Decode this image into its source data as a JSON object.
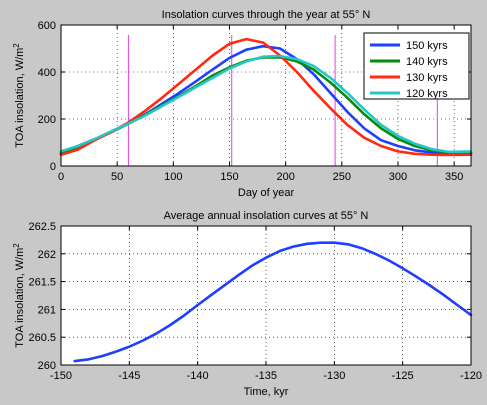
{
  "chart_data": [
    {
      "type": "line",
      "title": "Insolation curves through the year at 55° N",
      "xlabel": "Day of year",
      "ylabel": "TOA insolation, W/m2",
      "xlim": [
        0,
        365
      ],
      "ylim": [
        0,
        600
      ],
      "xticks": [
        0,
        50,
        100,
        150,
        200,
        250,
        300,
        350
      ],
      "yticks": [
        0,
        200,
        400,
        600
      ],
      "grid": true,
      "legend_position": "top-right",
      "vertical_markers": [
        60,
        152,
        244,
        335
      ],
      "vertical_marker_color": "#e040e0",
      "x": [
        0,
        15,
        30,
        45,
        60,
        75,
        90,
        105,
        120,
        135,
        150,
        165,
        180,
        195,
        210,
        225,
        240,
        255,
        270,
        285,
        300,
        315,
        330,
        345,
        365
      ],
      "series": [
        {
          "name": "150 kyrs",
          "color": "#1f3fff",
          "values": [
            54,
            80,
            112,
            145,
            180,
            220,
            265,
            310,
            360,
            410,
            460,
            495,
            510,
            500,
            455,
            390,
            310,
            230,
            160,
            110,
            85,
            67,
            58,
            52,
            54
          ]
        },
        {
          "name": "140 kyrs",
          "color": "#0a8a0a",
          "values": [
            56,
            80,
            112,
            145,
            180,
            218,
            258,
            298,
            340,
            385,
            420,
            448,
            462,
            462,
            445,
            410,
            355,
            290,
            220,
            160,
            115,
            85,
            67,
            58,
            56
          ]
        },
        {
          "name": "130 kyrs",
          "color": "#ff2a10",
          "values": [
            48,
            70,
            110,
            145,
            185,
            235,
            290,
            350,
            410,
            470,
            520,
            540,
            525,
            470,
            400,
            320,
            245,
            175,
            120,
            85,
            62,
            52,
            48,
            47,
            48
          ]
        },
        {
          "name": "120 kyrs",
          "color": "#22c8c8",
          "values": [
            62,
            85,
            115,
            148,
            180,
            215,
            255,
            295,
            335,
            375,
            415,
            445,
            465,
            468,
            455,
            425,
            375,
            310,
            240,
            175,
            128,
            95,
            72,
            60,
            62
          ]
        }
      ]
    },
    {
      "type": "line",
      "title": "Average annual insolation curves at 55° N",
      "xlabel": "Time, kyr",
      "ylabel": "TOA insolation, W/m2",
      "xlim": [
        -150,
        -120
      ],
      "ylim": [
        260,
        262.5
      ],
      "xticks": [
        -150,
        -145,
        -140,
        -135,
        -130,
        -125,
        -120
      ],
      "yticks": [
        260,
        260.5,
        261,
        261.5,
        262,
        262.5
      ],
      "grid": true,
      "x": [
        -149,
        -148,
        -147,
        -146,
        -145,
        -144,
        -143,
        -142,
        -141,
        -140,
        -139,
        -138,
        -137,
        -136,
        -135,
        -134,
        -133,
        -132,
        -131,
        -130,
        -129,
        -128,
        -127,
        -126,
        -125,
        -124,
        -123,
        -122,
        -121,
        -120
      ],
      "series": [
        {
          "name": "",
          "color": "#1f3fff",
          "values": [
            260.07,
            260.1,
            260.16,
            260.24,
            260.33,
            260.44,
            260.57,
            260.72,
            260.89,
            261.08,
            261.26,
            261.44,
            261.62,
            261.79,
            261.93,
            262.05,
            262.13,
            262.18,
            262.2,
            262.2,
            262.17,
            262.1,
            262.0,
            261.88,
            261.74,
            261.59,
            261.43,
            261.26,
            261.08,
            260.9
          ]
        }
      ]
    }
  ]
}
